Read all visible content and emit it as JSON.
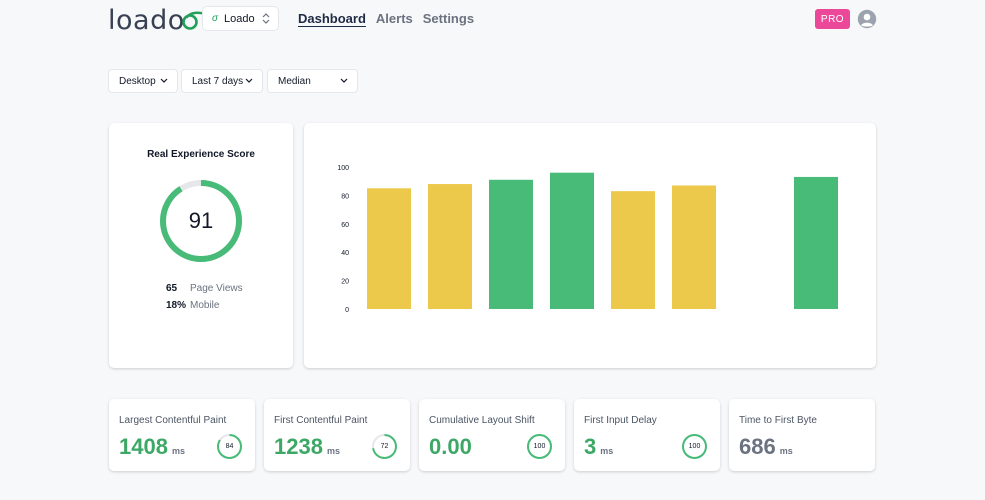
{
  "header": {
    "logo": "loado",
    "site_name": "Loado",
    "nav": [
      "Dashboard",
      "Alerts",
      "Settings"
    ],
    "active_nav": "Dashboard",
    "plan_badge": "PRO"
  },
  "filters": {
    "device": "Desktop",
    "range": "Last 7 days",
    "aggregate": "Median"
  },
  "score": {
    "title": "Real Experience Score",
    "value": "91",
    "fraction": 0.91,
    "page_views": "65",
    "page_views_label": "Page Views",
    "mobile": "18%",
    "mobile_label": "Mobile"
  },
  "chart_data": {
    "type": "bar",
    "title": "",
    "xlabel": "",
    "ylabel": "",
    "ylim": [
      0,
      100
    ],
    "yticks": [
      "100",
      "80",
      "60",
      "40",
      "20",
      "0"
    ],
    "values": [
      85,
      88,
      91,
      96,
      83,
      87,
      null,
      93
    ],
    "colors": [
      "#ecc94b",
      "#ecc94b",
      "#48bb78",
      "#48bb78",
      "#ecc94b",
      "#ecc94b",
      null,
      "#48bb78"
    ]
  },
  "metrics": [
    {
      "title": "Largest Contentful Paint",
      "value": "1408",
      "unit": "ms",
      "score": "84",
      "fraction": 0.84,
      "color": "#3da866"
    },
    {
      "title": "First Contentful Paint",
      "value": "1238",
      "unit": "ms",
      "score": "72",
      "fraction": 0.72,
      "color": "#3da866"
    },
    {
      "title": "Cumulative Layout Shift",
      "value": "0.00",
      "unit": "",
      "score": "100",
      "fraction": 1.0,
      "color": "#3da866"
    },
    {
      "title": "First Input Delay",
      "value": "3",
      "unit": "ms",
      "score": "100",
      "fraction": 1.0,
      "color": "#3da866"
    },
    {
      "title": "Time to First Byte",
      "value": "686",
      "unit": "ms",
      "score": "",
      "fraction": null,
      "color": "#6b7280"
    }
  ],
  "colors": {
    "good": "#48bb78",
    "average": "#ecc94b",
    "accent": "#ec4899",
    "track": "#e5e7eb"
  }
}
